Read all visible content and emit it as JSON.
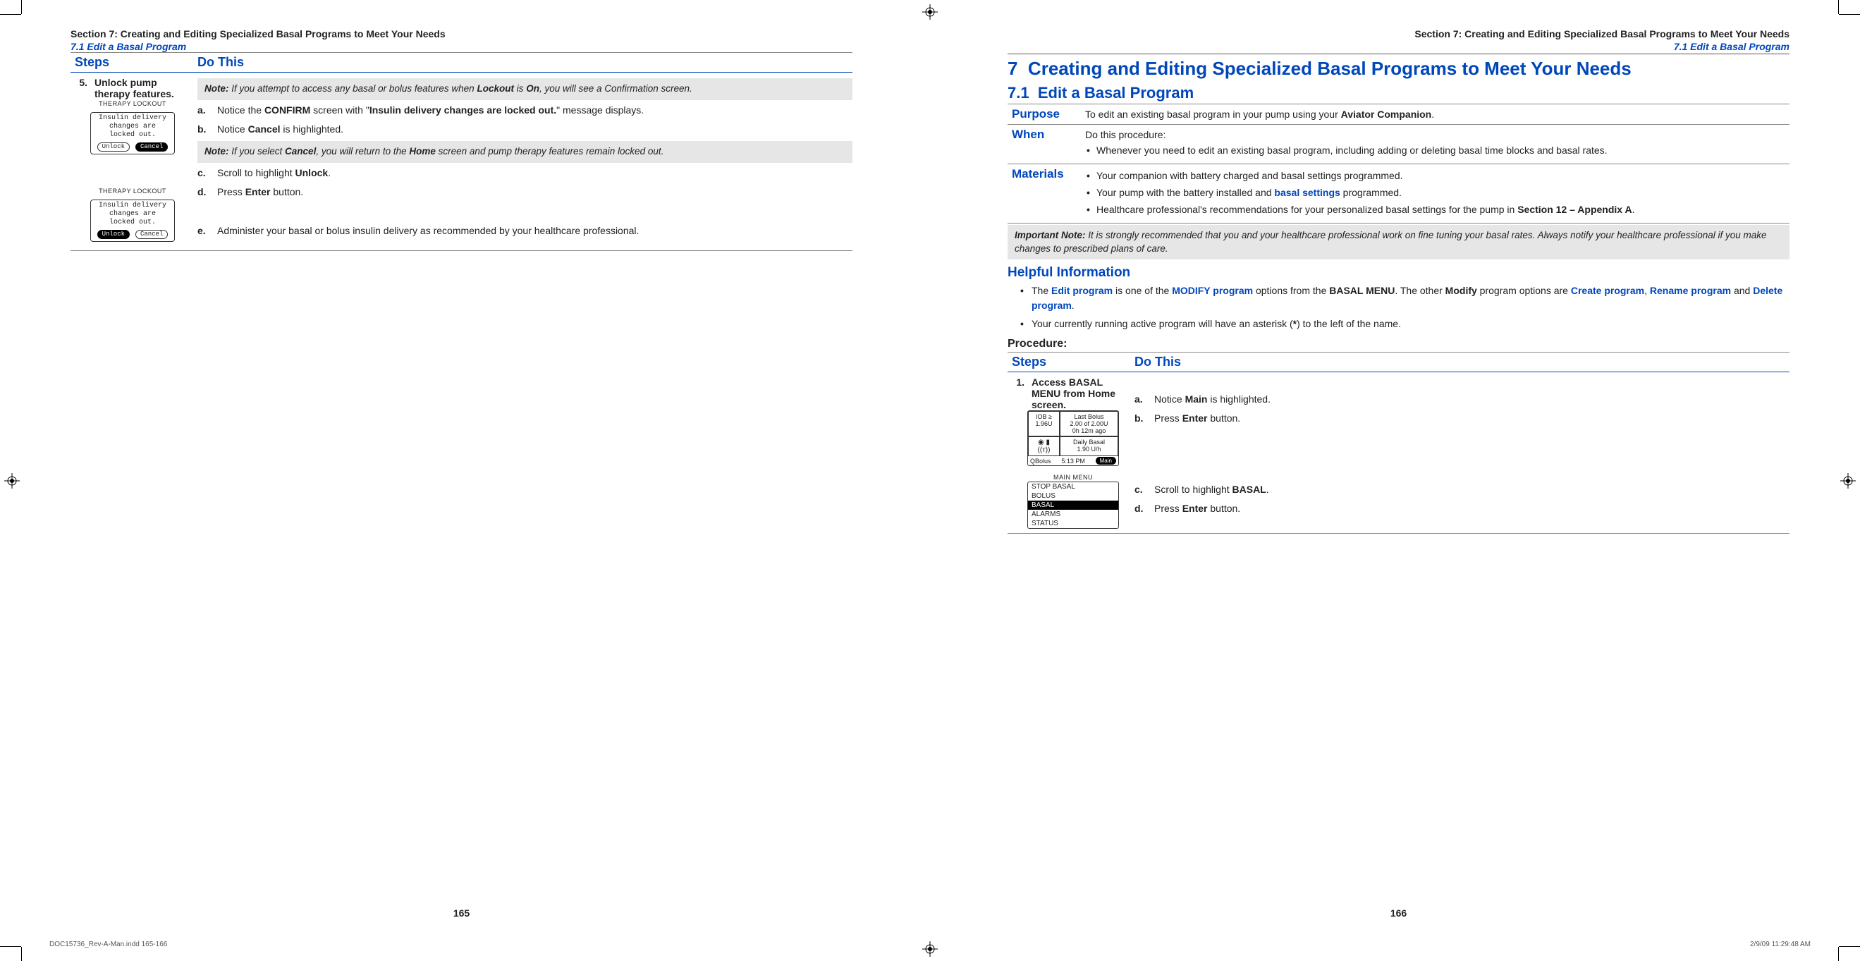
{
  "colors": {
    "brand": "#0047bb",
    "rule": "#888",
    "note_bg": "#e6e6e6",
    "text": "#222"
  },
  "crop": {
    "reg_icon": "registration-mark"
  },
  "left": {
    "section_header": "Section 7: Creating and Editing Specialized Basal Programs to Meet Your Needs",
    "subsection": "7.1 Edit a Basal Program",
    "steps_label": "Steps",
    "dothis_label": "Do This",
    "step5": {
      "num": "5.",
      "title": "Unlock pump therapy features.",
      "note1_pre": "Note:",
      "note1_body": " If you attempt to access any basal or bolus features when ",
      "note1_b1": "Lockout",
      "note1_mid": " is ",
      "note1_b2": "On",
      "note1_end": ", you will see a Confirmation screen.",
      "a_l": "a.",
      "a_pre": "Notice the ",
      "a_b1": "CONFIRM",
      "a_mid": " screen with \"",
      "a_b2": "Insulin delivery changes are locked out.",
      "a_end": "\" message displays.",
      "b_l": "b.",
      "b_pre": "Notice ",
      "b_b": "Cancel",
      "b_end": " is highlighted.",
      "note2_pre": "Note:",
      "note2_body": " If you select ",
      "note2_b1": "Cancel",
      "note2_mid": ", you will return to the ",
      "note2_b2": "Home",
      "note2_end": " screen and pump therapy features remain locked out.",
      "c_l": "c.",
      "c_pre": "Scroll to highlight ",
      "c_b": "Unlock",
      "c_end": ".",
      "d_l": "d.",
      "d_pre": "Press ",
      "d_b": "Enter",
      "d_end": " button.",
      "e_l": "e.",
      "e_body": "Administer your basal or bolus insulin delivery as recommended by your healthcare professional.",
      "screen1": {
        "title": "THERAPY LOCKOUT",
        "l1": "Insulin delivery",
        "l2": "changes are",
        "l3": "locked out.",
        "btn_unlock": "Unlock",
        "btn_cancel": "Cancel",
        "sel": "cancel"
      },
      "screen2": {
        "title": "THERAPY LOCKOUT",
        "l1": "Insulin delivery",
        "l2": "changes are",
        "l3": "locked out.",
        "btn_unlock": "Unlock",
        "btn_cancel": "Cancel",
        "sel": "unlock"
      }
    },
    "page_num": "165"
  },
  "right": {
    "section_header": "Section 7: Creating and Editing Specialized Basal Programs to Meet Your Needs",
    "subsection": "7.1 Edit a Basal Program",
    "chapter_num": "7",
    "chapter_title": "Creating and Editing Specialized Basal Programs to Meet Your Needs",
    "sub_num": "7.1",
    "sub_title": "Edit a Basal Program",
    "purpose_label": "Purpose",
    "purpose_pre": "To edit an existing basal program in your pump using your ",
    "purpose_b": "Aviator Companion",
    "purpose_end": ".",
    "when_label": "When",
    "when_intro": "Do this procedure:",
    "when_li": "Whenever you need to edit an existing basal program, including adding or deleting basal time blocks and basal rates.",
    "materials_label": "Materials",
    "mat_li1": "Your companion with battery charged and basal settings programmed.",
    "mat_li2_pre": "Your pump with the battery installed and ",
    "mat_li2_link": "basal settings",
    "mat_li2_end": " programmed.",
    "mat_li3_pre": "Healthcare professional's recommendations for your personalized basal settings for the pump in ",
    "mat_li3_b": "Section 12 – Appendix A",
    "mat_li3_end": ".",
    "impnote_pre": "Important Note:",
    "impnote_body": " It is strongly recommended that you and your healthcare professional work on fine tuning your basal rates. Always notify your healthcare professional if you make changes to prescribed plans of care.",
    "helpful_title": "Helpful Information",
    "hi1_pre": "The ",
    "hi1_l1": "Edit program",
    "hi1_mid1": " is one of the ",
    "hi1_l2": "MODIFY program",
    "hi1_mid2": " options from the ",
    "hi1_b": "BASAL MENU",
    "hi1_mid3": ". The other ",
    "hi1_b2": "Modify",
    "hi1_mid4": " program options are ",
    "hi1_l3": "Create program",
    "hi1_c": ", ",
    "hi1_l4": "Rename program",
    "hi1_and": " and ",
    "hi1_l5": "Delete program",
    "hi1_end": ".",
    "hi2_pre": "Your currently running active program will have an asterisk (",
    "hi2_b": "*",
    "hi2_end": ") to the left of the name.",
    "procedure": "Procedure:",
    "steps_label": "Steps",
    "dothis_label": "Do This",
    "step1": {
      "num": "1.",
      "title": "Access BASAL MENU from Home screen.",
      "a_l": "a.",
      "a_pre": "Notice ",
      "a_b": "Main",
      "a_end": " is highlighted.",
      "b_l": "b.",
      "b_pre": "Press ",
      "b_b": "Enter",
      "b_end": " button.",
      "c_l": "c.",
      "c_pre": "Scroll to highlight ",
      "c_b": "BASAL",
      "c_end": ".",
      "d_l": "d.",
      "d_pre": "Press ",
      "d_b": "Enter",
      "d_end": " button.",
      "home": {
        "iob_lbl": "IOB ≥",
        "iob_val": "1.96U",
        "lb_title": "Last Bolus",
        "lb_l1": "2.00 of 2.00U",
        "lb_l2": "0h 12m ago",
        "db_title": "Daily Basal",
        "db_val": "1.90 U/h",
        "qb": "QBolus",
        "time": "5:13 PM",
        "main": "Main"
      },
      "menu": {
        "title": "MAIN MENU",
        "items": [
          "STOP BASAL",
          "BOLUS",
          "BASAL",
          "ALARMS",
          "STATUS"
        ],
        "sel_index": 2
      }
    },
    "page_num": "166"
  },
  "footer": {
    "file": "DOC15736_Rev-A-Man.indd   165-166",
    "stamp": "2/9/09   11:29:48 AM"
  }
}
